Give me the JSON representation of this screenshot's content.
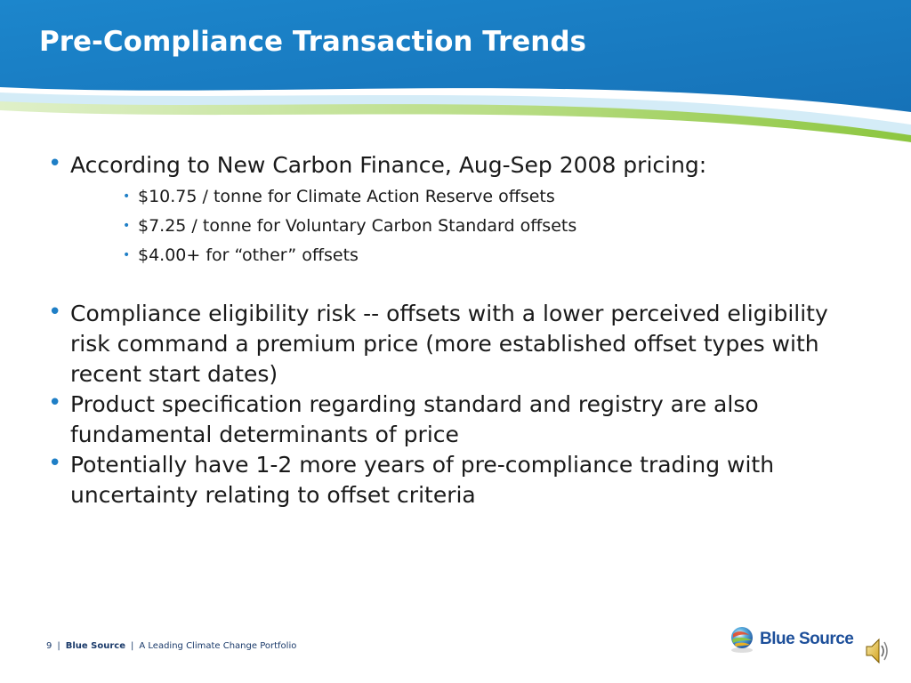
{
  "slide": {
    "title": "Pre-Compliance Transaction Trends",
    "bullets": [
      {
        "text": "According to New Carbon Finance, Aug-Sep 2008 pricing:",
        "sub": [
          "$10.75 / tonne for Climate Action Reserve offsets",
          "$7.25 / tonne for Voluntary Carbon Standard offsets",
          "$4.00+ for “other” offsets"
        ]
      },
      {
        "text": "Compliance eligibility risk -- offsets with a lower perceived eligibility risk command a premium price (more established offset types with recent start dates)"
      },
      {
        "text": "Product specification regarding standard and registry are also fundamental determinants of price"
      },
      {
        "text": "Potentially have 1-2 more years of pre-compliance trading with uncertainty relating to offset criteria"
      }
    ],
    "bullet_glyph": "•"
  },
  "footer": {
    "page_number": "9",
    "separator": "|",
    "brand": "Blue Source",
    "tagline": "A Leading Climate Change Portfolio"
  },
  "logo": {
    "text": "Blue Source",
    "icon": "blue-source-globe-icon"
  },
  "speaker": {
    "icon": "speaker-icon"
  },
  "colors": {
    "header_blue": "#1a7cc4",
    "header_light": "#cde8f6",
    "header_green": "#8cc63f",
    "bullet": "#1f7fc6",
    "text": "#1a1a1a",
    "footer_text": "#1a3a6a"
  }
}
